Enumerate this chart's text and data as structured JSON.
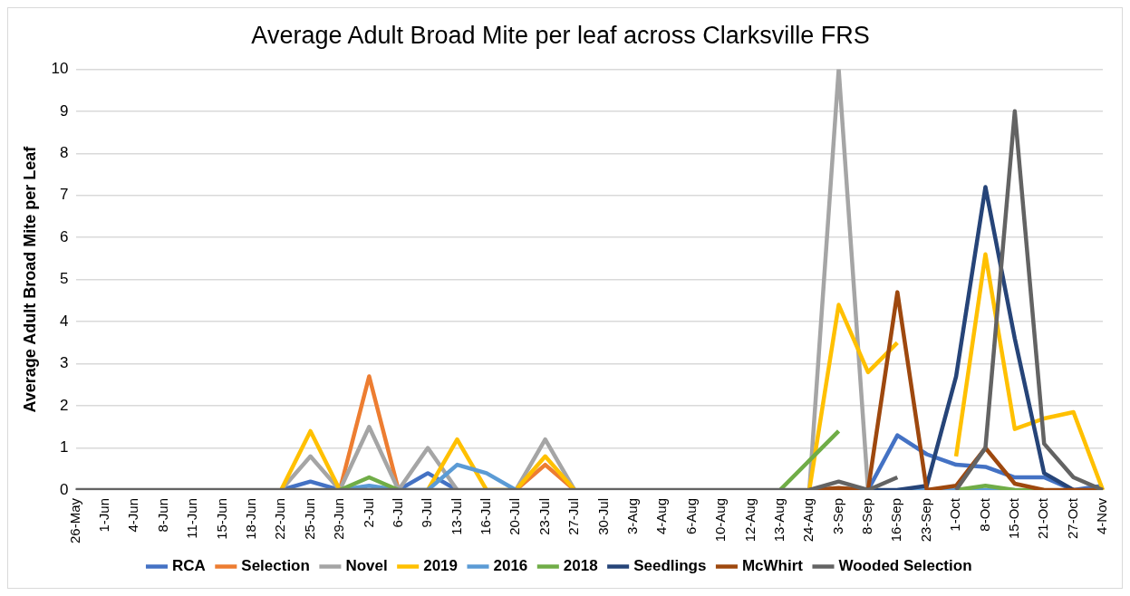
{
  "chart_data": {
    "type": "line",
    "title": "Average Adult Broad Mite per leaf across Clarksville FRS",
    "ylabel": "Average Adult Broad Mite per Leaf",
    "categories": [
      "26-May",
      "1-Jun",
      "4-Jun",
      "8-Jun",
      "11-Jun",
      "15-Jun",
      "18-Jun",
      "22-Jun",
      "25-Jun",
      "29-Jun",
      "2-Jul",
      "6-Jul",
      "9-Jul",
      "13-Jul",
      "16-Jul",
      "20-Jul",
      "23-Jul",
      "27-Jul",
      "30-Jul",
      "3-Aug",
      "4-Aug",
      "6-Aug",
      "10-Aug",
      "12-Aug",
      "13-Aug",
      "24-Aug",
      "3-Sep",
      "8-Sep",
      "16-Sep",
      "23-Sep",
      "1-Oct",
      "8-Oct",
      "15-Oct",
      "21-Oct",
      "27-Oct",
      "4-Nov"
    ],
    "ylim": [
      0,
      10
    ],
    "yticks": [
      0,
      1,
      2,
      3,
      4,
      5,
      6,
      7,
      8,
      9,
      10
    ],
    "grid": "y",
    "legend": "bottom",
    "marker": "none",
    "line_style": "solid",
    "series": [
      {
        "name": "RCA",
        "color": "#4472c4",
        "values": [
          null,
          null,
          null,
          null,
          null,
          null,
          null,
          0,
          0.2,
          0,
          null,
          0,
          0.4,
          0,
          null,
          null,
          null,
          null,
          null,
          null,
          null,
          null,
          null,
          null,
          null,
          null,
          null,
          0,
          1.3,
          0.85,
          0.6,
          0.55,
          0.3,
          0.3,
          0,
          0.1
        ]
      },
      {
        "name": "Selection",
        "color": "#ed7d31",
        "values": [
          null,
          null,
          null,
          null,
          null,
          null,
          null,
          null,
          null,
          0,
          2.7,
          0,
          null,
          null,
          null,
          0,
          0.6,
          0,
          null,
          null,
          null,
          null,
          null,
          null,
          null,
          null,
          null,
          null,
          null,
          null,
          null,
          null,
          null,
          null,
          null,
          null
        ]
      },
      {
        "name": "Novel",
        "color": "#a5a5a5",
        "values": [
          null,
          null,
          null,
          null,
          null,
          null,
          null,
          0,
          0.8,
          0,
          1.5,
          0,
          1,
          0,
          null,
          0,
          1.2,
          0,
          null,
          null,
          null,
          null,
          null,
          null,
          null,
          0,
          10,
          0,
          null,
          null,
          null,
          null,
          null,
          null,
          null,
          null
        ]
      },
      {
        "name": "2019",
        "color": "#ffc000",
        "values": [
          null,
          null,
          null,
          null,
          null,
          null,
          null,
          0,
          1.4,
          0,
          null,
          null,
          0,
          1.2,
          0,
          0,
          0.8,
          0,
          null,
          null,
          null,
          null,
          null,
          null,
          null,
          0,
          4.4,
          2.8,
          3.5,
          null,
          0.8,
          5.6,
          1.45,
          1.7,
          1.85,
          0
        ]
      },
      {
        "name": "2016",
        "color": "#5b9bd5",
        "values": [
          null,
          null,
          null,
          null,
          null,
          null,
          null,
          null,
          null,
          0,
          0.1,
          0,
          0,
          0.6,
          0.4,
          0,
          null,
          null,
          null,
          null,
          null,
          null,
          null,
          null,
          null,
          null,
          null,
          null,
          0,
          0,
          0,
          0,
          0,
          null,
          null,
          null
        ]
      },
      {
        "name": "2018",
        "color": "#70ad47",
        "values": [
          null,
          null,
          null,
          null,
          null,
          null,
          null,
          null,
          null,
          0,
          0.3,
          0,
          null,
          null,
          null,
          null,
          null,
          null,
          null,
          null,
          null,
          null,
          null,
          null,
          0,
          0.7,
          1.4,
          null,
          null,
          null,
          0,
          0.1,
          0,
          0,
          null,
          null
        ]
      },
      {
        "name": "Seedlings",
        "color": "#264478",
        "values": [
          null,
          null,
          null,
          null,
          null,
          null,
          null,
          null,
          null,
          null,
          null,
          null,
          null,
          null,
          null,
          null,
          null,
          null,
          null,
          null,
          null,
          null,
          null,
          null,
          null,
          0,
          0,
          0,
          0,
          0.1,
          2.7,
          7.2,
          3.6,
          0.4,
          0,
          null
        ]
      },
      {
        "name": "McWhirt",
        "color": "#9e480e",
        "values": [
          null,
          null,
          null,
          null,
          null,
          null,
          null,
          null,
          null,
          null,
          null,
          null,
          null,
          null,
          null,
          null,
          null,
          null,
          null,
          null,
          null,
          null,
          null,
          null,
          null,
          0,
          0.05,
          0,
          4.7,
          0,
          0.1,
          1,
          0.15,
          0,
          0,
          0
        ]
      },
      {
        "name": "Wooded Selection",
        "color": "#636363",
        "values": [
          0,
          0,
          0,
          0,
          0,
          0,
          0,
          0,
          0,
          0,
          0,
          0,
          0,
          0,
          0,
          0,
          0,
          0,
          0,
          0,
          0,
          0,
          0,
          0,
          0,
          0,
          0.2,
          0,
          0.3,
          null,
          0,
          1,
          9,
          1.1,
          0.3,
          0
        ]
      }
    ]
  }
}
